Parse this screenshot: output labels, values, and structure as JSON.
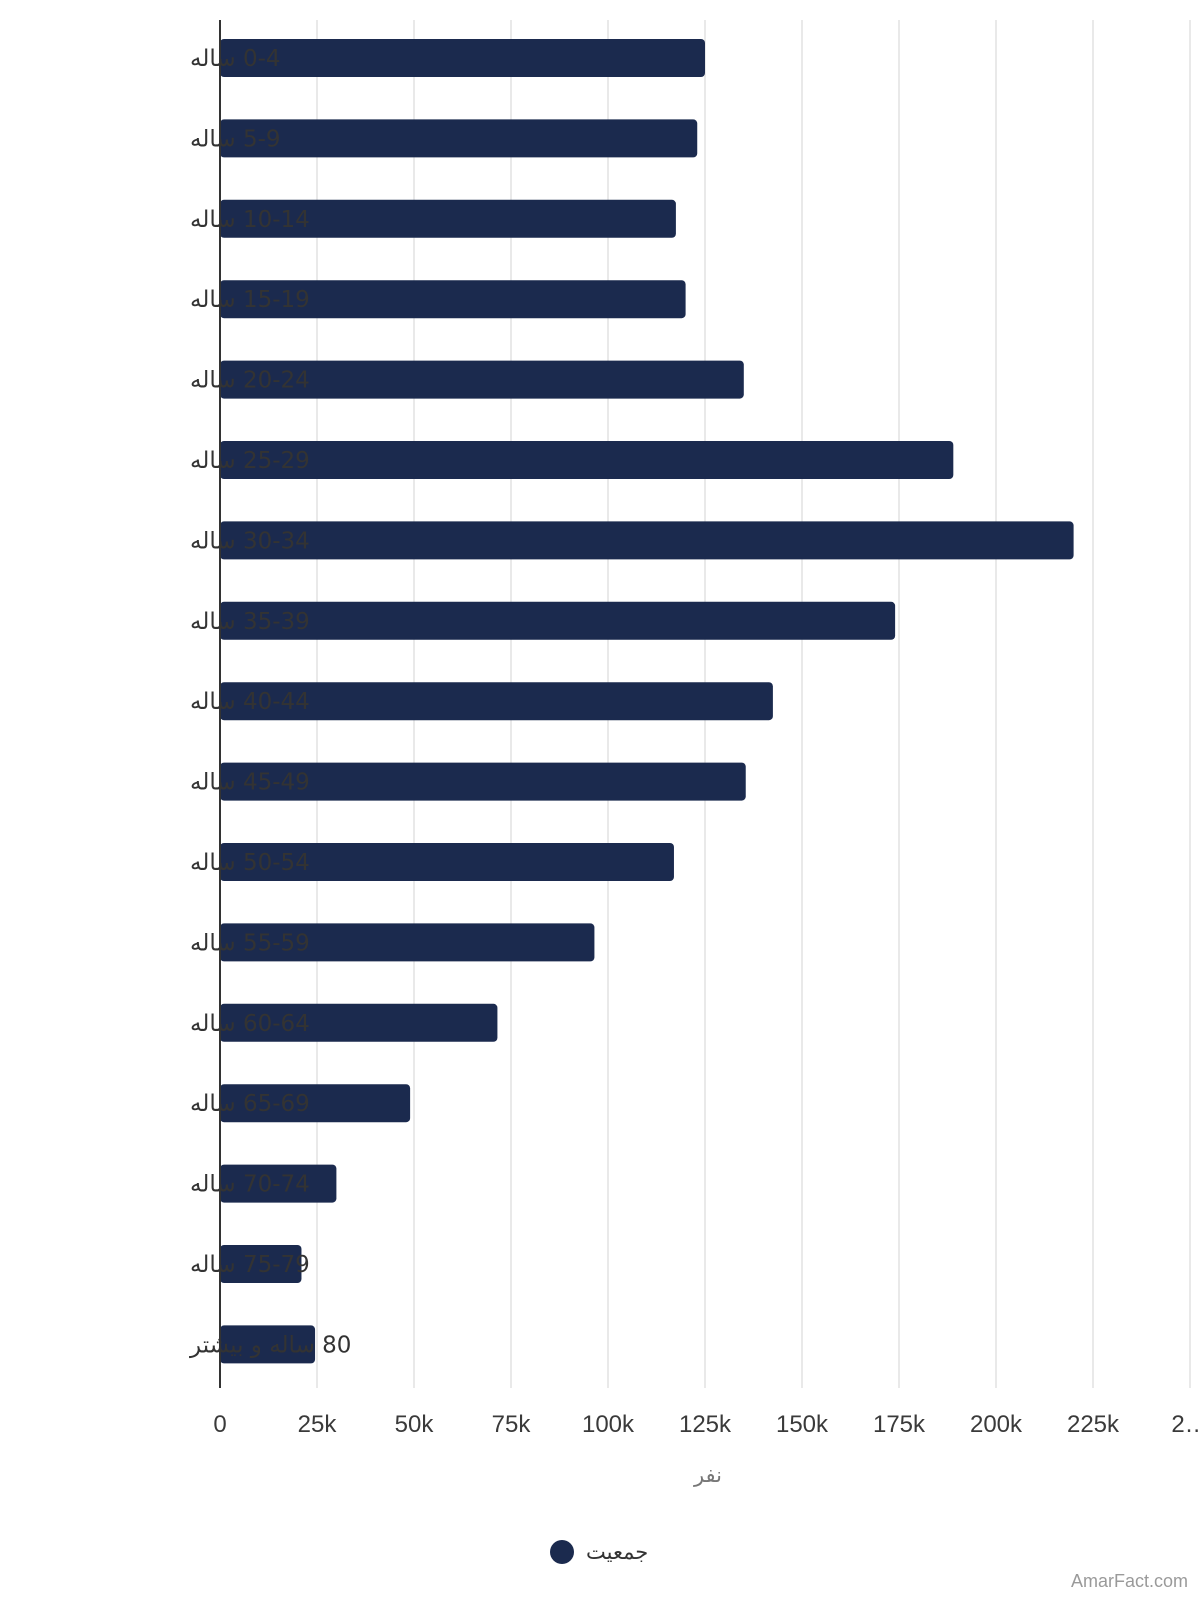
{
  "chart_data": {
    "type": "bar",
    "orientation": "horizontal",
    "categories": [
      "0-4 ساله",
      "5-9 ساله",
      "10-14 ساله",
      "15-19 ساله",
      "20-24 ساله",
      "25-29 ساله",
      "30-34 ساله",
      "35-39 ساله",
      "40-44 ساله",
      "45-49 ساله",
      "50-54 ساله",
      "55-59 ساله",
      "60-64 ساله",
      "65-69 ساله",
      "70-74 ساله",
      "75-79 ساله",
      "80 ساله و بیشتر"
    ],
    "series": [
      {
        "name": "جمعیت",
        "color": "#1b2a4e",
        "values": [
          125000,
          123000,
          117500,
          120000,
          135000,
          189000,
          220000,
          174000,
          142500,
          135500,
          117000,
          96500,
          71500,
          49000,
          30000,
          21000,
          24500
        ]
      }
    ],
    "x_ticks": [
      "0",
      "25k",
      "50k",
      "75k",
      "100k",
      "125k",
      "150k",
      "175k",
      "200k",
      "225k",
      "2…"
    ],
    "xlim": [
      0,
      250000
    ],
    "xlabel": "نفر",
    "grid": true,
    "legend_position": "bottom-center",
    "colors": {
      "bar": "#1b2a4e",
      "grid": "#e2e2e2",
      "axis": "#333333"
    }
  },
  "watermark": "AmarFact.com"
}
